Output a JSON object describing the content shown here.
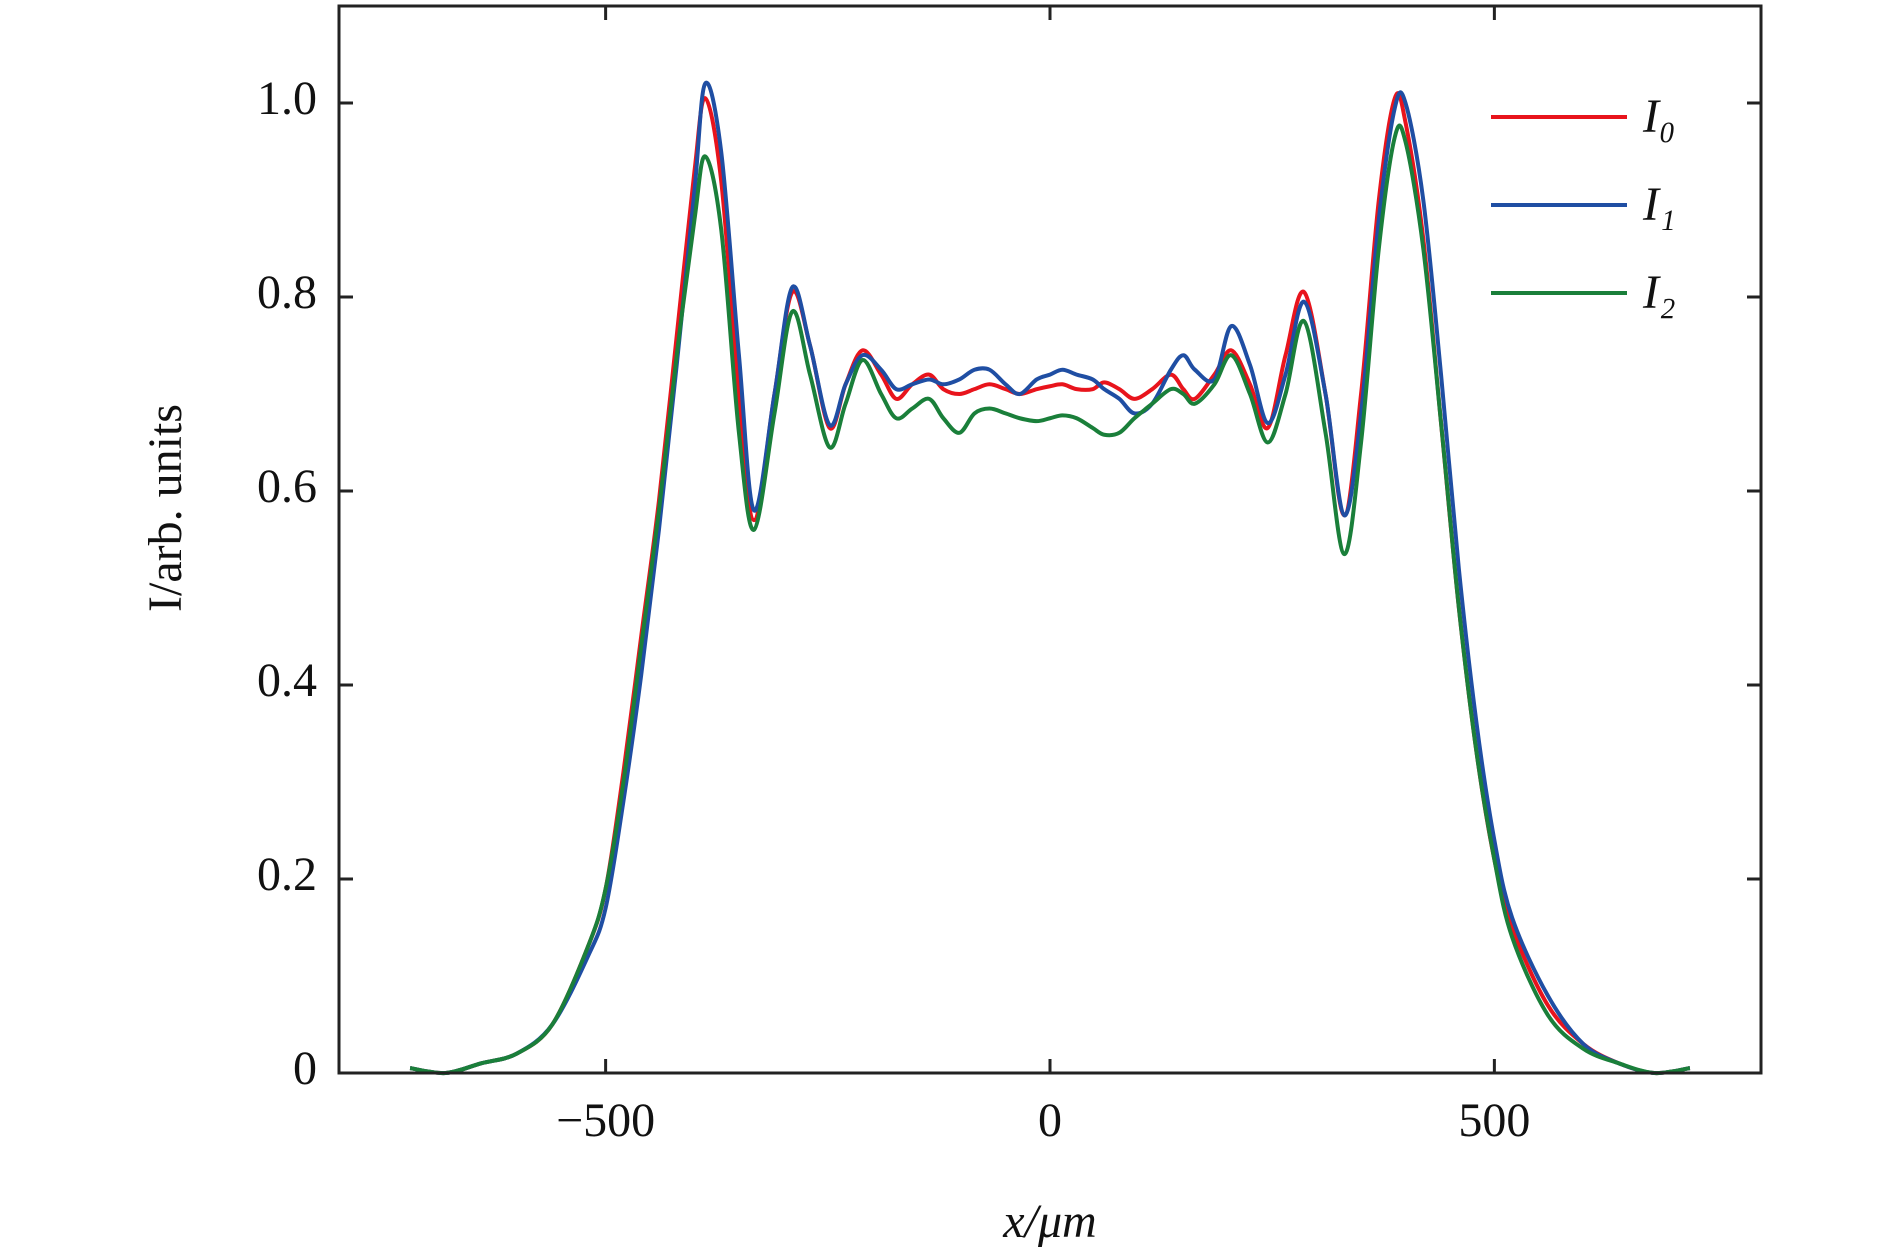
{
  "chart_data": {
    "type": "line",
    "xlabel": "x/μm",
    "ylabel": "I/arb. units",
    "x": [
      -720,
      -680,
      -640,
      -600,
      -560,
      -520,
      -500,
      -480,
      -460,
      -440,
      -420,
      -400,
      -388,
      -370,
      -350,
      -333,
      -310,
      -290,
      -270,
      -248,
      -230,
      -211,
      -190,
      -173,
      -155,
      -136,
      -120,
      -102,
      -85,
      -68,
      -50,
      -34,
      -15,
      0,
      14,
      30,
      48,
      61,
      78,
      95,
      115,
      136,
      150,
      163,
      185,
      204,
      225,
      245,
      265,
      286,
      310,
      331,
      350,
      370,
      388,
      400,
      420,
      440,
      460,
      480,
      500,
      520,
      560,
      600,
      640,
      680,
      720
    ],
    "series": [
      {
        "name": "I₀",
        "color": "#e8141c",
        "values": [
          0.005,
          0.0,
          0.01,
          0.02,
          0.05,
          0.13,
          0.19,
          0.31,
          0.45,
          0.59,
          0.76,
          0.93,
          1.005,
          0.92,
          0.7,
          0.57,
          0.7,
          0.805,
          0.75,
          0.665,
          0.71,
          0.745,
          0.72,
          0.695,
          0.71,
          0.72,
          0.705,
          0.7,
          0.705,
          0.71,
          0.705,
          0.7,
          0.705,
          0.708,
          0.71,
          0.705,
          0.705,
          0.712,
          0.705,
          0.695,
          0.705,
          0.72,
          0.705,
          0.695,
          0.72,
          0.745,
          0.71,
          0.665,
          0.74,
          0.805,
          0.7,
          0.575,
          0.7,
          0.9,
          1.005,
          0.98,
          0.86,
          0.67,
          0.48,
          0.33,
          0.22,
          0.15,
          0.07,
          0.03,
          0.01,
          0.0,
          0.005
        ]
      },
      {
        "name": "I₁",
        "color": "#1f4ea3",
        "values": [
          0.005,
          0.0,
          0.01,
          0.02,
          0.05,
          0.12,
          0.17,
          0.28,
          0.41,
          0.56,
          0.73,
          0.91,
          1.02,
          0.95,
          0.74,
          0.58,
          0.7,
          0.81,
          0.75,
          0.668,
          0.71,
          0.74,
          0.725,
          0.705,
          0.71,
          0.715,
          0.71,
          0.715,
          0.725,
          0.725,
          0.71,
          0.7,
          0.715,
          0.72,
          0.725,
          0.72,
          0.715,
          0.705,
          0.695,
          0.68,
          0.69,
          0.725,
          0.74,
          0.725,
          0.715,
          0.77,
          0.73,
          0.67,
          0.72,
          0.795,
          0.7,
          0.575,
          0.68,
          0.88,
          0.995,
          1.0,
          0.9,
          0.72,
          0.52,
          0.36,
          0.24,
          0.16,
          0.08,
          0.03,
          0.01,
          0.0,
          0.005
        ]
      },
      {
        "name": "I₂",
        "color": "#1a7f3a",
        "values": [
          0.005,
          0.0,
          0.01,
          0.02,
          0.05,
          0.13,
          0.19,
          0.3,
          0.44,
          0.58,
          0.74,
          0.88,
          0.945,
          0.87,
          0.66,
          0.56,
          0.68,
          0.785,
          0.72,
          0.645,
          0.69,
          0.735,
          0.7,
          0.675,
          0.685,
          0.695,
          0.675,
          0.66,
          0.68,
          0.685,
          0.68,
          0.675,
          0.672,
          0.675,
          0.678,
          0.675,
          0.665,
          0.658,
          0.66,
          0.675,
          0.69,
          0.705,
          0.7,
          0.69,
          0.71,
          0.74,
          0.7,
          0.65,
          0.7,
          0.775,
          0.66,
          0.535,
          0.65,
          0.85,
          0.965,
          0.96,
          0.85,
          0.67,
          0.48,
          0.33,
          0.22,
          0.14,
          0.06,
          0.025,
          0.01,
          0.0,
          0.005
        ]
      }
    ],
    "xlim": [
      -800,
      800
    ],
    "ylim": [
      0,
      1.1
    ],
    "xticks": [
      {
        "value": -500,
        "label": "−500"
      },
      0,
      500
    ],
    "yticks": [
      0,
      0.2,
      0.4,
      0.6,
      0.8,
      {
        "value": 1,
        "label": "1.0"
      }
    ],
    "legend": "upper right",
    "grid": false
  }
}
